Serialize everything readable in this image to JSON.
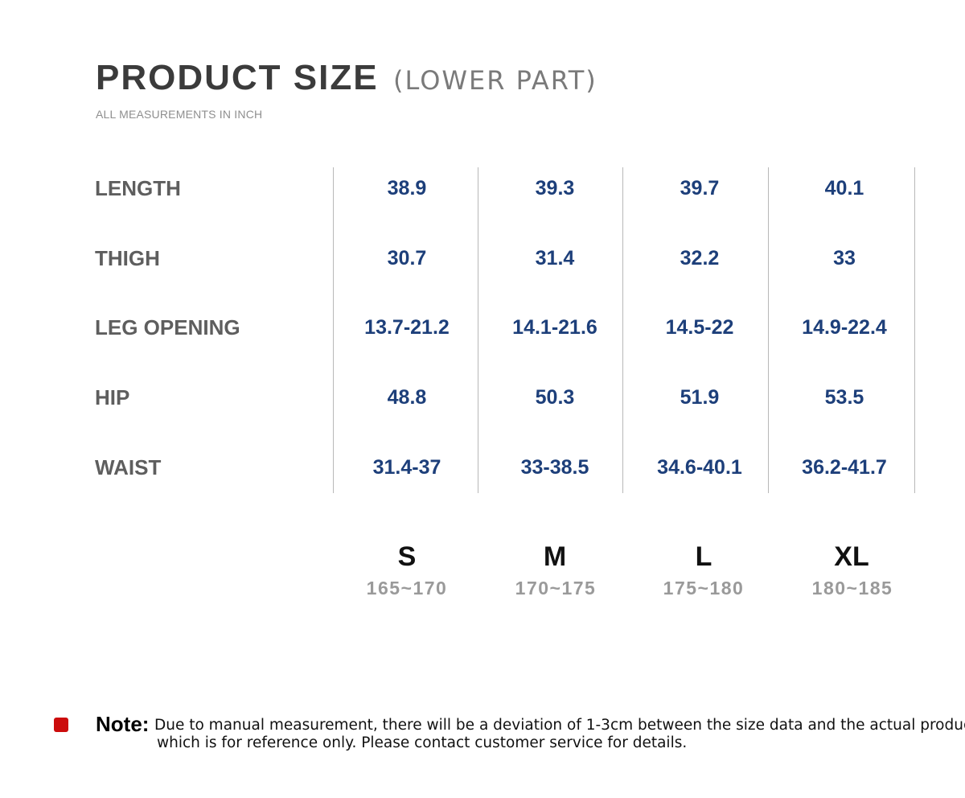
{
  "header": {
    "title": "PRODUCT SIZE",
    "subtitle": "(LOWER PART)",
    "units_note": "ALL MEASUREMENTS IN INCH"
  },
  "table": {
    "rows": [
      {
        "label": "LENGTH",
        "values": [
          "38.9",
          "39.3",
          "39.7",
          "40.1"
        ]
      },
      {
        "label": "THIGH",
        "values": [
          "30.7",
          "31.4",
          "32.2",
          "33"
        ]
      },
      {
        "label": "LEG OPENING",
        "values": [
          "13.7-21.2",
          "14.1-21.6",
          "14.5-22",
          "14.9-22.4"
        ]
      },
      {
        "label": "HIP",
        "values": [
          "48.8",
          "50.3",
          "51.9",
          "53.5"
        ]
      },
      {
        "label": "WAIST",
        "values": [
          "31.4-37",
          "33-38.5",
          "34.6-40.1",
          "36.2-41.7"
        ]
      }
    ],
    "sizes": [
      {
        "label": "S",
        "range": "165~170"
      },
      {
        "label": "M",
        "range": "170~175"
      },
      {
        "label": "L",
        "range": "175~180"
      },
      {
        "label": "XL",
        "range": "180~185"
      }
    ]
  },
  "note": {
    "label": "Note:",
    "line1": "Due to manual measurement, there will be a deviation of 1-3cm between the size data and the actual product,",
    "line2": "which is for reference only. Please contact customer service for details."
  },
  "colors": {
    "value_text": "#1d3f7a",
    "label_text": "#5e5e5e",
    "bullet": "#cc0c0c"
  }
}
